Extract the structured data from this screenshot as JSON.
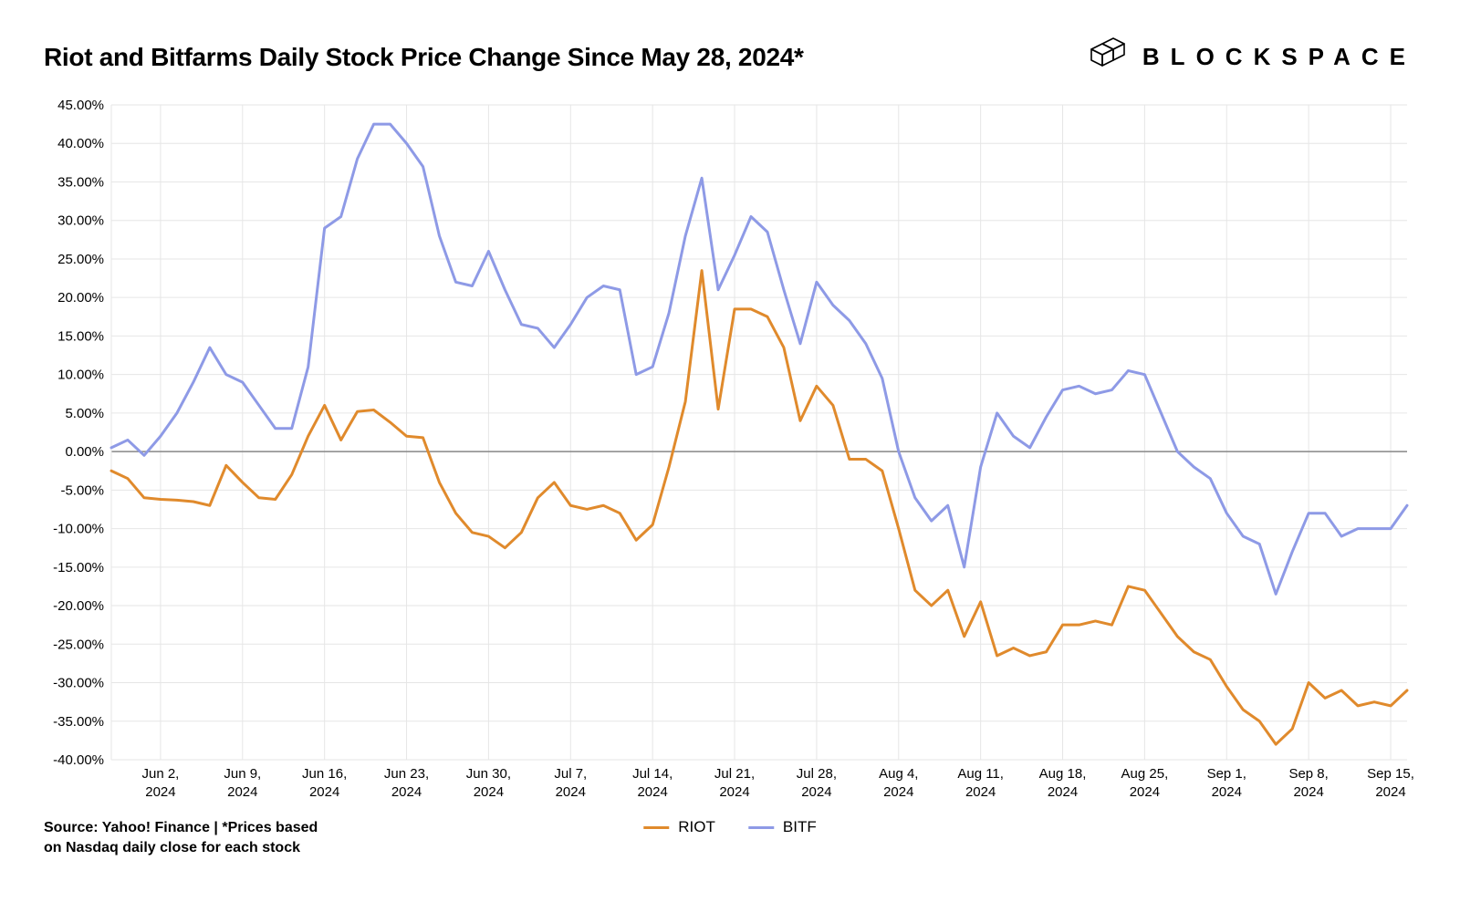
{
  "title": "Riot and Bitfarms Daily Stock Price Change Since May 28, 2024*",
  "brand": "BLOCKSPACE",
  "source_line1": "Source: Yahoo! Finance | *Prices based",
  "source_line2": "on Nasdaq daily close for each stock",
  "legend": {
    "riot": "RIOT",
    "bitf": "BITF"
  },
  "chart": {
    "type": "line",
    "background_color": "#ffffff",
    "grid_color": "#e6e6e6",
    "zero_line_color": "#888888",
    "axis_color": "#000000",
    "font_size_ticks": 15,
    "ylim": [
      -40,
      45
    ],
    "ytick_step": 5,
    "ytick_format_suffix": "%",
    "ytick_decimals": 2,
    "x_labels": [
      "Jun 2, 2024",
      "Jun 9, 2024",
      "Jun 16, 2024",
      "Jun 23, 2024",
      "Jun 30, 2024",
      "Jul 7, 2024",
      "Jul 14, 2024",
      "Jul 21, 2024",
      "Jul 28, 2024",
      "Aug 4, 2024",
      "Aug 11, 2024",
      "Aug 18, 2024",
      "Aug 25, 2024",
      "Sep 1, 2024",
      "Sep 8, 2024",
      "Sep 15, 2024"
    ],
    "x_label_indices": [
      3,
      8,
      13,
      18,
      23,
      28,
      33,
      38,
      43,
      48,
      53,
      58,
      63,
      68,
      73,
      78
    ],
    "series": [
      {
        "name": "RIOT",
        "color": "#e08a2c",
        "line_width": 3,
        "values": [
          -2.5,
          -3.5,
          -6.0,
          -6.2,
          -6.3,
          -6.5,
          -7.0,
          -1.8,
          -4.0,
          -6.0,
          -6.2,
          -3.0,
          2.0,
          6.0,
          1.5,
          5.2,
          5.4,
          3.8,
          2.0,
          1.8,
          -4.0,
          -8.0,
          -10.5,
          -11.0,
          -12.5,
          -10.5,
          -6.0,
          -4.0,
          -7.0,
          -7.5,
          -7.0,
          -8.0,
          -11.5,
          -9.5,
          -2.0,
          6.5,
          23.5,
          5.5,
          18.5,
          18.5,
          17.5,
          13.5,
          4.0,
          8.5,
          6.0,
          -1.0,
          -1.0,
          -2.5,
          -10.0,
          -18.0,
          -20.0,
          -18.0,
          -24.0,
          -19.5,
          -26.5,
          -25.5,
          -26.5,
          -26.0,
          -22.5,
          -22.5,
          -22.0,
          -22.5,
          -17.5,
          -18.0,
          -21.0,
          -24.0,
          -26.0,
          -27.0,
          -30.5,
          -33.5,
          -35.0,
          -38.0,
          -36.0,
          -30.0,
          -32.0,
          -31.0,
          -33.0,
          -32.5,
          -33.0,
          -31.0
        ]
      },
      {
        "name": "BITF",
        "color": "#8e9ae6",
        "line_width": 3,
        "values": [
          0.5,
          1.5,
          -0.5,
          2.0,
          5.0,
          9.0,
          13.5,
          10.0,
          9.0,
          6.0,
          3.0,
          3.0,
          11.0,
          29.0,
          30.5,
          38.0,
          42.5,
          42.5,
          40.0,
          37.0,
          28.0,
          22.0,
          21.5,
          26.0,
          21.0,
          16.5,
          16.0,
          13.5,
          16.5,
          20.0,
          21.5,
          21.0,
          10.0,
          11.0,
          18.0,
          28.0,
          35.5,
          21.0,
          25.5,
          30.5,
          28.5,
          21.0,
          14.0,
          22.0,
          19.0,
          17.0,
          14.0,
          9.5,
          0.0,
          -6.0,
          -9.0,
          -7.0,
          -15.0,
          -2.0,
          5.0,
          2.0,
          0.5,
          4.5,
          8.0,
          8.5,
          7.5,
          8.0,
          10.5,
          10.0,
          5.0,
          0.0,
          -2.0,
          -3.5,
          -8.0,
          -11.0,
          -12.0,
          -18.5,
          -13.0,
          -8.0,
          -8.0,
          -11.0,
          -10.0,
          -10.0,
          -10.0,
          -7.0
        ]
      }
    ]
  }
}
